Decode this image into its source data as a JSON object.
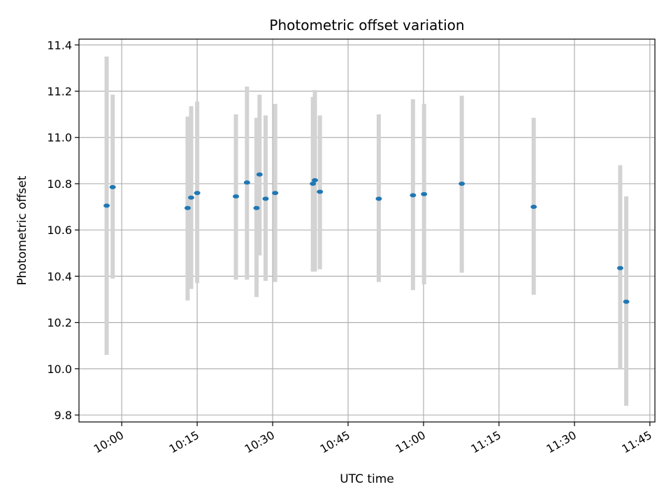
{
  "chart_data": {
    "type": "scatter",
    "title": "Photometric offset variation",
    "xlabel": "UTC time",
    "ylabel": "Photometric offset",
    "xlim": [
      "09:51:30",
      "11:46:00"
    ],
    "ylim": [
      9.77,
      11.425
    ],
    "grid": true,
    "x_ticks": [
      "10:00",
      "10:15",
      "10:30",
      "10:45",
      "11:00",
      "11:15",
      "11:30",
      "11:45"
    ],
    "y_ticks": [
      "9.8",
      "10.0",
      "10.2",
      "10.4",
      "10.6",
      "10.8",
      "11.0",
      "11.2",
      "11.4"
    ],
    "series": [
      {
        "point_color": "#1f77b4",
        "error_color": "#d3d3d3",
        "points": [
          {
            "x": "09:57:00",
            "y": 10.705,
            "lo": 10.06,
            "hi": 11.35
          },
          {
            "x": "09:58:12",
            "y": 10.785,
            "lo": 10.39,
            "hi": 11.185
          },
          {
            "x": "10:13:06",
            "y": 10.695,
            "lo": 10.295,
            "hi": 11.09
          },
          {
            "x": "10:13:48",
            "y": 10.74,
            "lo": 10.345,
            "hi": 11.135
          },
          {
            "x": "10:15:00",
            "y": 10.76,
            "lo": 10.37,
            "hi": 11.155
          },
          {
            "x": "10:22:42",
            "y": 10.745,
            "lo": 10.385,
            "hi": 11.1
          },
          {
            "x": "10:24:54",
            "y": 10.805,
            "lo": 10.385,
            "hi": 11.22
          },
          {
            "x": "10:26:48",
            "y": 10.695,
            "lo": 10.31,
            "hi": 11.085
          },
          {
            "x": "10:27:24",
            "y": 10.84,
            "lo": 10.49,
            "hi": 11.185
          },
          {
            "x": "10:28:36",
            "y": 10.735,
            "lo": 10.38,
            "hi": 11.095
          },
          {
            "x": "10:30:30",
            "y": 10.76,
            "lo": 10.375,
            "hi": 11.145
          },
          {
            "x": "10:38:00",
            "y": 10.8,
            "lo": 10.42,
            "hi": 11.175
          },
          {
            "x": "10:38:24",
            "y": 10.815,
            "lo": 10.42,
            "hi": 11.205
          },
          {
            "x": "10:39:24",
            "y": 10.765,
            "lo": 10.43,
            "hi": 11.095
          },
          {
            "x": "10:51:06",
            "y": 10.735,
            "lo": 10.375,
            "hi": 11.1
          },
          {
            "x": "10:57:54",
            "y": 10.75,
            "lo": 10.34,
            "hi": 11.165
          },
          {
            "x": "11:00:06",
            "y": 10.755,
            "lo": 10.365,
            "hi": 11.145
          },
          {
            "x": "11:07:36",
            "y": 10.8,
            "lo": 10.415,
            "hi": 11.18
          },
          {
            "x": "11:21:54",
            "y": 10.7,
            "lo": 10.32,
            "hi": 11.085
          },
          {
            "x": "11:39:06",
            "y": 10.435,
            "lo": 10.0,
            "hi": 10.88
          },
          {
            "x": "11:40:18",
            "y": 10.29,
            "lo": 9.84,
            "hi": 10.745
          }
        ]
      }
    ]
  }
}
